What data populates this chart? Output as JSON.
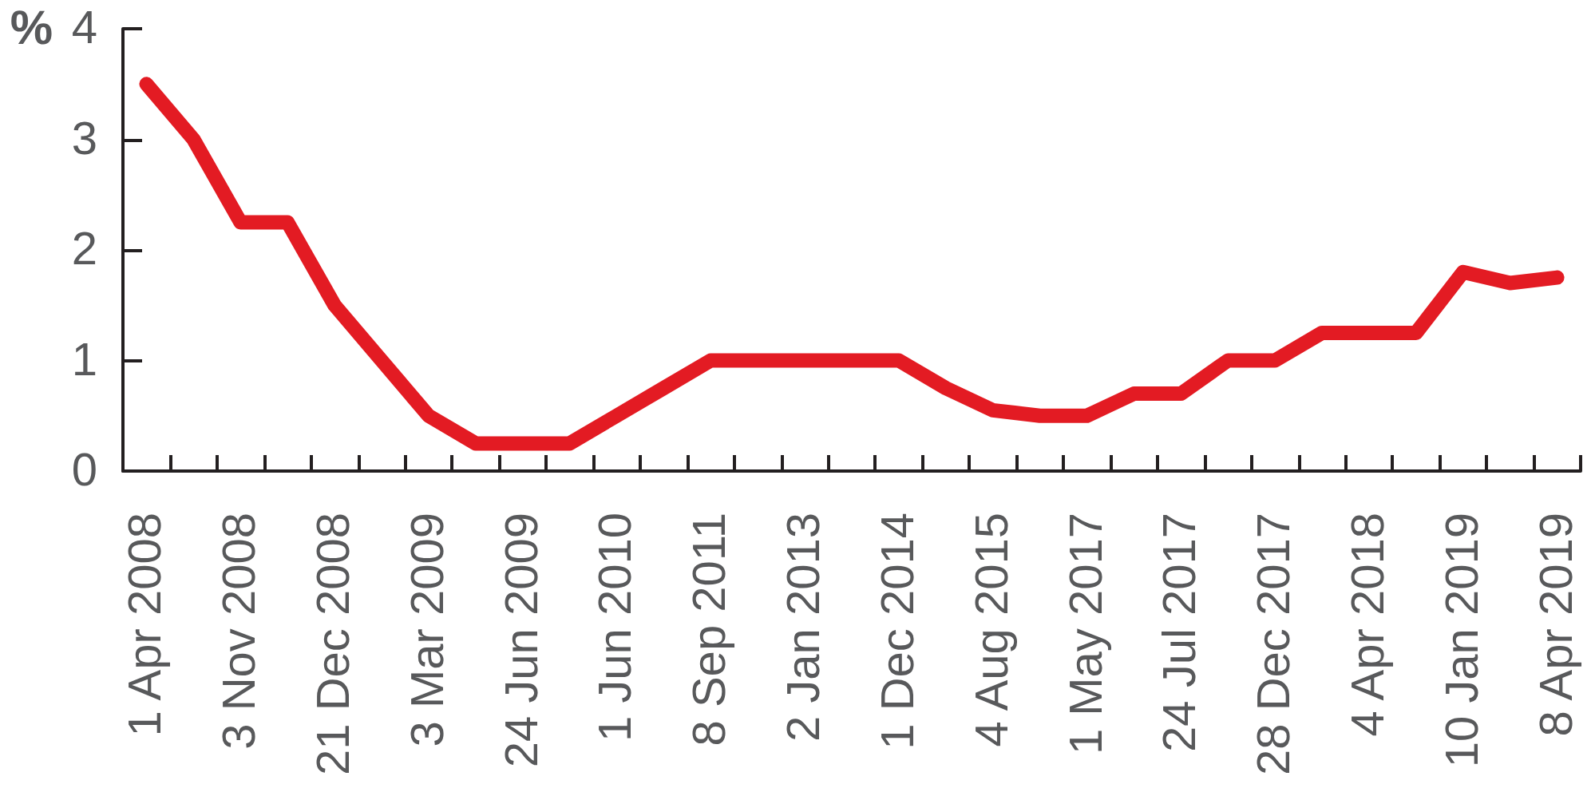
{
  "chart_data": {
    "type": "line",
    "ylabel": "%",
    "categories": [
      "1 Apr 2008",
      null,
      "3 Nov 2008",
      null,
      "21 Dec 2008",
      null,
      "3 Mar 2009",
      null,
      "24 Jun 2009",
      null,
      "1 Jun 2010",
      null,
      "8 Sep 2011",
      null,
      "2 Jan 2013",
      null,
      "1 Dec 2014",
      null,
      "4 Aug 2015",
      null,
      "1 May 2017",
      null,
      "24 Jul 2017",
      null,
      "28 Dec 2017",
      null,
      "4 Apr 2018",
      null,
      "10 Jan 2019",
      null,
      "8 Apr 2019"
    ],
    "series": [
      {
        "color": "#e31b23",
        "values": [
          3.5,
          3.0,
          2.25,
          2.25,
          1.5,
          1.0,
          0.5,
          0.25,
          0.25,
          0.25,
          0.5,
          0.75,
          1.0,
          1.0,
          1.0,
          1.0,
          1.0,
          0.75,
          0.55,
          0.5,
          0.5,
          0.7,
          0.7,
          1.0,
          1.0,
          1.25,
          1.25,
          1.25,
          1.8,
          1.7,
          1.75
        ]
      }
    ],
    "ylim": [
      0,
      4
    ],
    "yticks": [
      0,
      1,
      2,
      3,
      4
    ],
    "grid": false,
    "line_style": "solid"
  }
}
